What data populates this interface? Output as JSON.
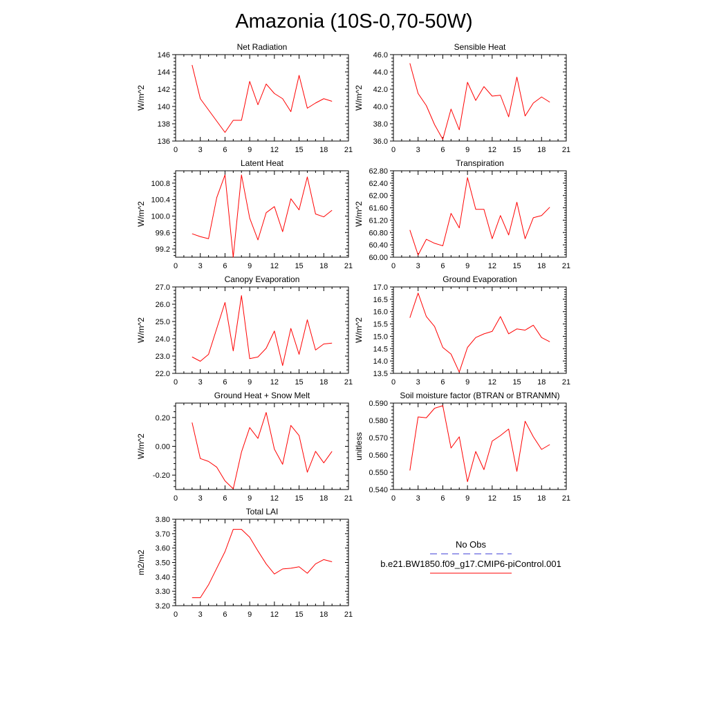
{
  "page": {
    "title": "Amazonia (10S-0,70-50W)"
  },
  "legend": {
    "entries": [
      {
        "name": "No Obs",
        "color": "#3b3bd6",
        "dash": true
      },
      {
        "name": "b.e21.BW1850.f09_g17.CMIP6-piControl.001",
        "color": "#ff0000",
        "dash": false
      }
    ]
  },
  "chart_data": [
    {
      "type": "line",
      "title": "Net Radiation",
      "ylabel": "W/m^2",
      "xlim": [
        0,
        21
      ],
      "ylim": [
        136,
        146
      ],
      "xticks": [
        0,
        3,
        6,
        9,
        12,
        15,
        18,
        21
      ],
      "xtick_labels": [
        "0",
        "3",
        "6",
        "9",
        "12",
        "15",
        "18",
        "21"
      ],
      "yticks": [
        136,
        138,
        140,
        142,
        144,
        146
      ],
      "ytick_labels": [
        "136",
        "138",
        "140",
        "142",
        "144",
        "146"
      ],
      "series": [
        {
          "color": "#ff0000",
          "x": [
            2,
            3,
            4,
            5,
            6,
            7,
            8,
            9,
            10,
            11,
            12,
            13,
            14,
            15,
            16,
            17,
            18,
            19
          ],
          "y": [
            144.8,
            140.9,
            139.6,
            138.3,
            137.0,
            138.4,
            138.4,
            142.9,
            140.2,
            142.6,
            141.5,
            140.9,
            139.4,
            143.6,
            139.8,
            140.4,
            140.9,
            140.6
          ]
        }
      ]
    },
    {
      "type": "line",
      "title": "Sensible Heat",
      "ylabel": "W/m^2",
      "xlim": [
        0,
        21
      ],
      "ylim": [
        36,
        46
      ],
      "xticks": [
        0,
        3,
        6,
        9,
        12,
        15,
        18,
        21
      ],
      "xtick_labels": [
        "0",
        "3",
        "6",
        "9",
        "12",
        "15",
        "18",
        "21"
      ],
      "yticks": [
        36,
        38,
        40,
        42,
        44,
        46
      ],
      "ytick_labels": [
        "36.0",
        "38.0",
        "40.0",
        "42.0",
        "44.0",
        "46.0"
      ],
      "series": [
        {
          "color": "#ff0000",
          "x": [
            2,
            3,
            4,
            5,
            6,
            7,
            8,
            9,
            10,
            11,
            12,
            13,
            14,
            15,
            16,
            17,
            18,
            19
          ],
          "y": [
            45.0,
            41.5,
            40.1,
            37.9,
            36.2,
            39.7,
            37.3,
            42.8,
            40.7,
            42.3,
            41.2,
            41.3,
            38.8,
            43.4,
            38.9,
            40.4,
            41.1,
            40.5
          ]
        }
      ]
    },
    {
      "type": "line",
      "title": "Latent Heat",
      "ylabel": "W/m^2",
      "xlim": [
        0,
        21
      ],
      "ylim": [
        99.0,
        101.1
      ],
      "xticks": [
        0,
        3,
        6,
        9,
        12,
        15,
        18,
        21
      ],
      "xtick_labels": [
        "0",
        "3",
        "6",
        "9",
        "12",
        "15",
        "18",
        "21"
      ],
      "yticks": [
        99.2,
        99.6,
        100.0,
        100.4,
        100.8
      ],
      "ytick_labels": [
        "99.2",
        "99.6",
        "100.0",
        "100.4",
        "100.8"
      ],
      "series": [
        {
          "color": "#ff0000",
          "x": [
            2,
            3,
            4,
            5,
            6,
            7,
            8,
            9,
            10,
            11,
            12,
            13,
            14,
            15,
            16,
            17,
            18,
            19
          ],
          "y": [
            99.57,
            99.5,
            99.45,
            100.45,
            101.0,
            99.0,
            101.0,
            99.95,
            99.42,
            100.08,
            100.23,
            99.62,
            100.42,
            100.15,
            100.95,
            100.05,
            99.98,
            100.14
          ]
        }
      ]
    },
    {
      "type": "line",
      "title": "Transpiration",
      "ylabel": "W/m^2",
      "xlim": [
        0,
        21
      ],
      "ylim": [
        60.0,
        62.8
      ],
      "xticks": [
        0,
        3,
        6,
        9,
        12,
        15,
        18,
        21
      ],
      "xtick_labels": [
        "0",
        "3",
        "6",
        "9",
        "12",
        "15",
        "18",
        "21"
      ],
      "yticks": [
        60.0,
        60.4,
        60.8,
        61.2,
        61.6,
        62.0,
        62.4,
        62.8
      ],
      "ytick_labels": [
        "60.00",
        "60.40",
        "60.80",
        "61.20",
        "61.60",
        "62.00",
        "62.40",
        "62.80"
      ],
      "series": [
        {
          "color": "#ff0000",
          "x": [
            2,
            3,
            4,
            5,
            6,
            7,
            8,
            9,
            10,
            11,
            12,
            13,
            14,
            15,
            16,
            17,
            18,
            19
          ],
          "y": [
            60.88,
            60.07,
            60.58,
            60.45,
            60.37,
            61.42,
            60.95,
            62.58,
            61.55,
            61.55,
            60.6,
            61.35,
            60.72,
            61.78,
            60.6,
            61.28,
            61.35,
            61.62
          ]
        }
      ]
    },
    {
      "type": "line",
      "title": "Canopy Evaporation",
      "ylabel": "W/m^2",
      "xlim": [
        0,
        21
      ],
      "ylim": [
        22,
        27
      ],
      "xticks": [
        0,
        3,
        6,
        9,
        12,
        15,
        18,
        21
      ],
      "xtick_labels": [
        "0",
        "3",
        "6",
        "9",
        "12",
        "15",
        "18",
        "21"
      ],
      "yticks": [
        22,
        23,
        24,
        25,
        26,
        27
      ],
      "ytick_labels": [
        "22.0",
        "23.0",
        "24.0",
        "25.0",
        "26.0",
        "27.0"
      ],
      "series": [
        {
          "color": "#ff0000",
          "x": [
            2,
            3,
            4,
            5,
            6,
            7,
            8,
            9,
            10,
            11,
            12,
            13,
            14,
            15,
            16,
            17,
            18,
            19
          ],
          "y": [
            22.95,
            22.7,
            23.1,
            24.6,
            26.1,
            23.3,
            26.5,
            22.85,
            22.95,
            23.45,
            24.45,
            22.45,
            24.6,
            23.1,
            25.1,
            23.35,
            23.7,
            23.75
          ]
        }
      ]
    },
    {
      "type": "line",
      "title": "Ground Evaporation",
      "ylabel": "W/m^2",
      "xlim": [
        0,
        21
      ],
      "ylim": [
        13.5,
        17.0
      ],
      "xticks": [
        0,
        3,
        6,
        9,
        12,
        15,
        18,
        21
      ],
      "xtick_labels": [
        "0",
        "3",
        "6",
        "9",
        "12",
        "15",
        "18",
        "21"
      ],
      "yticks": [
        13.5,
        14.0,
        14.5,
        15.0,
        15.5,
        16.0,
        16.5,
        17.0
      ],
      "ytick_labels": [
        "13.5",
        "14.0",
        "14.5",
        "15.0",
        "15.5",
        "16.0",
        "16.5",
        "17.0"
      ],
      "series": [
        {
          "color": "#ff0000",
          "x": [
            2,
            3,
            4,
            5,
            6,
            7,
            8,
            9,
            10,
            11,
            12,
            13,
            14,
            15,
            16,
            17,
            18,
            19
          ],
          "y": [
            15.75,
            16.75,
            15.8,
            15.4,
            14.55,
            14.28,
            13.55,
            14.55,
            14.95,
            15.1,
            15.2,
            15.8,
            15.1,
            15.3,
            15.25,
            15.45,
            14.95,
            14.78
          ]
        }
      ]
    },
    {
      "type": "line",
      "title": "Ground Heat + Snow Melt",
      "ylabel": "W/m^2",
      "xlim": [
        0,
        21
      ],
      "ylim": [
        -0.3,
        0.3
      ],
      "xticks": [
        0,
        3,
        6,
        9,
        12,
        15,
        18,
        21
      ],
      "xtick_labels": [
        "0",
        "3",
        "6",
        "9",
        "12",
        "15",
        "18",
        "21"
      ],
      "yticks": [
        -0.2,
        0.0,
        0.2
      ],
      "ytick_labels": [
        "-0.20",
        "0.00",
        "0.20"
      ],
      "series": [
        {
          "color": "#ff0000",
          "x": [
            2,
            3,
            4,
            5,
            6,
            7,
            8,
            9,
            10,
            11,
            12,
            13,
            14,
            15,
            16,
            17,
            18,
            19
          ],
          "y": [
            0.165,
            -0.085,
            -0.105,
            -0.145,
            -0.24,
            -0.295,
            -0.04,
            0.13,
            0.055,
            0.235,
            -0.02,
            -0.125,
            0.145,
            0.075,
            -0.18,
            -0.035,
            -0.115,
            -0.035
          ]
        }
      ]
    },
    {
      "type": "line",
      "title": "Soil moisture factor (BTRAN or BTRANMN)",
      "ylabel": "unitless",
      "xlim": [
        0,
        21
      ],
      "ylim": [
        0.54,
        0.59
      ],
      "xticks": [
        0,
        3,
        6,
        9,
        12,
        15,
        18,
        21
      ],
      "xtick_labels": [
        "0",
        "3",
        "6",
        "9",
        "12",
        "15",
        "18",
        "21"
      ],
      "yticks": [
        0.54,
        0.55,
        0.56,
        0.57,
        0.58,
        0.59
      ],
      "ytick_labels": [
        "0.540",
        "0.550",
        "0.560",
        "0.570",
        "0.580",
        "0.590"
      ],
      "series": [
        {
          "color": "#ff0000",
          "x": [
            2,
            3,
            4,
            5,
            6,
            7,
            8,
            9,
            10,
            11,
            12,
            13,
            14,
            15,
            16,
            17,
            18,
            19
          ],
          "y": [
            0.551,
            0.582,
            0.5815,
            0.587,
            0.5885,
            0.564,
            0.5705,
            0.5445,
            0.562,
            0.5515,
            0.568,
            0.5712,
            0.575,
            0.5505,
            0.5795,
            0.5705,
            0.5632,
            0.566
          ]
        }
      ]
    },
    {
      "type": "line",
      "title": "Total LAI",
      "ylabel": "m2/m2",
      "xlim": [
        0,
        21
      ],
      "ylim": [
        3.2,
        3.8
      ],
      "xticks": [
        0,
        3,
        6,
        9,
        12,
        15,
        18,
        21
      ],
      "xtick_labels": [
        "0",
        "3",
        "6",
        "9",
        "12",
        "15",
        "18",
        "21"
      ],
      "yticks": [
        3.2,
        3.3,
        3.4,
        3.5,
        3.6,
        3.7,
        3.8
      ],
      "ytick_labels": [
        "3.20",
        "3.30",
        "3.40",
        "3.50",
        "3.60",
        "3.70",
        "3.80"
      ],
      "series": [
        {
          "color": "#ff0000",
          "x": [
            2,
            3,
            4,
            5,
            6,
            7,
            8,
            9,
            10,
            11,
            12,
            13,
            14,
            15,
            16,
            17,
            18,
            19
          ],
          "y": [
            3.255,
            3.255,
            3.345,
            3.46,
            3.575,
            3.73,
            3.73,
            3.675,
            3.58,
            3.49,
            3.42,
            3.455,
            3.46,
            3.47,
            3.425,
            3.49,
            3.52,
            3.505
          ]
        }
      ]
    }
  ]
}
